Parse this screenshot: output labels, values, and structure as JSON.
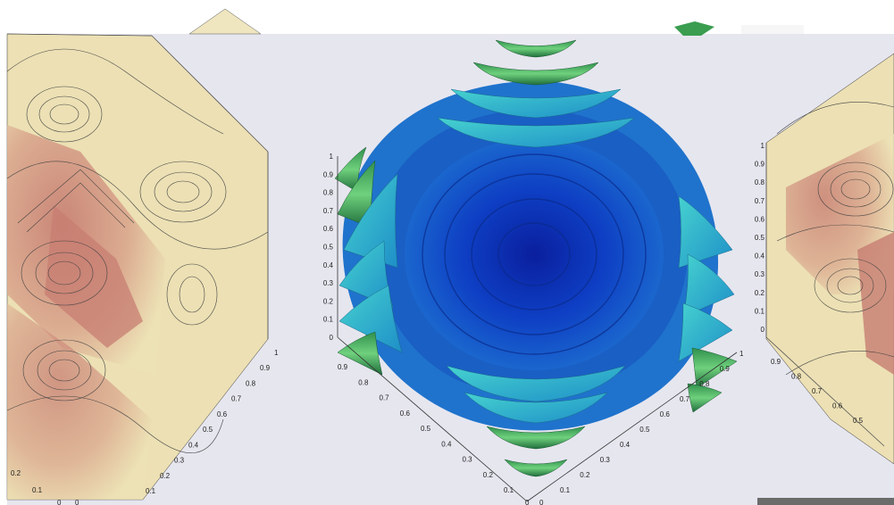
{
  "colors": {
    "background": "#ffffff",
    "canvas": "#e6e6ef",
    "contour_light": "#ece0b4",
    "contour_dark": "#c77d72",
    "surface_deep": "#0b2fb8",
    "surface_mid": "#1f73cc",
    "surface_cyan": "#2fb9c9",
    "surface_green": "#39a35a"
  },
  "left_plot": {
    "vertical_ticks": [],
    "right_depth_ticks": [
      "1",
      "0.9",
      "0.8",
      "0.7",
      "0.6",
      "0.5",
      "0.4",
      "0.3",
      "0.2",
      "0.1"
    ],
    "left_depth_ticks": [
      "0.2",
      "0.1"
    ],
    "corner_ticks": [
      "0",
      "0"
    ]
  },
  "center_plot": {
    "vertical_ticks": [
      "1",
      "0.9",
      "0.8",
      "0.7",
      "0.6",
      "0.5",
      "0.4",
      "0.3",
      "0.2",
      "0.1",
      "0"
    ],
    "left_depth_ticks": [
      "0.9",
      "0.8",
      "0.7",
      "0.6",
      "0.5",
      "0.4",
      "0.3",
      "0.2",
      "0.1"
    ],
    "right_depth_ticks": [
      "1",
      "0.9",
      "0.8",
      "0.7",
      "0.6",
      "0.5",
      "0.4",
      "0.3",
      "0.2",
      "0.1"
    ],
    "corner_ticks": [
      "0",
      "0"
    ]
  },
  "right_plot": {
    "vertical_ticks": [
      "1",
      "0.9",
      "0.8",
      "0.7",
      "0.6",
      "0.5",
      "0.4",
      "0.3",
      "0.2",
      "0.1",
      "0"
    ],
    "left_depth_ticks": [
      "0.9",
      "0.8",
      "0.7",
      "0.6",
      "0.5"
    ],
    "right_depth_ticks": [],
    "corner_ticks": []
  }
}
